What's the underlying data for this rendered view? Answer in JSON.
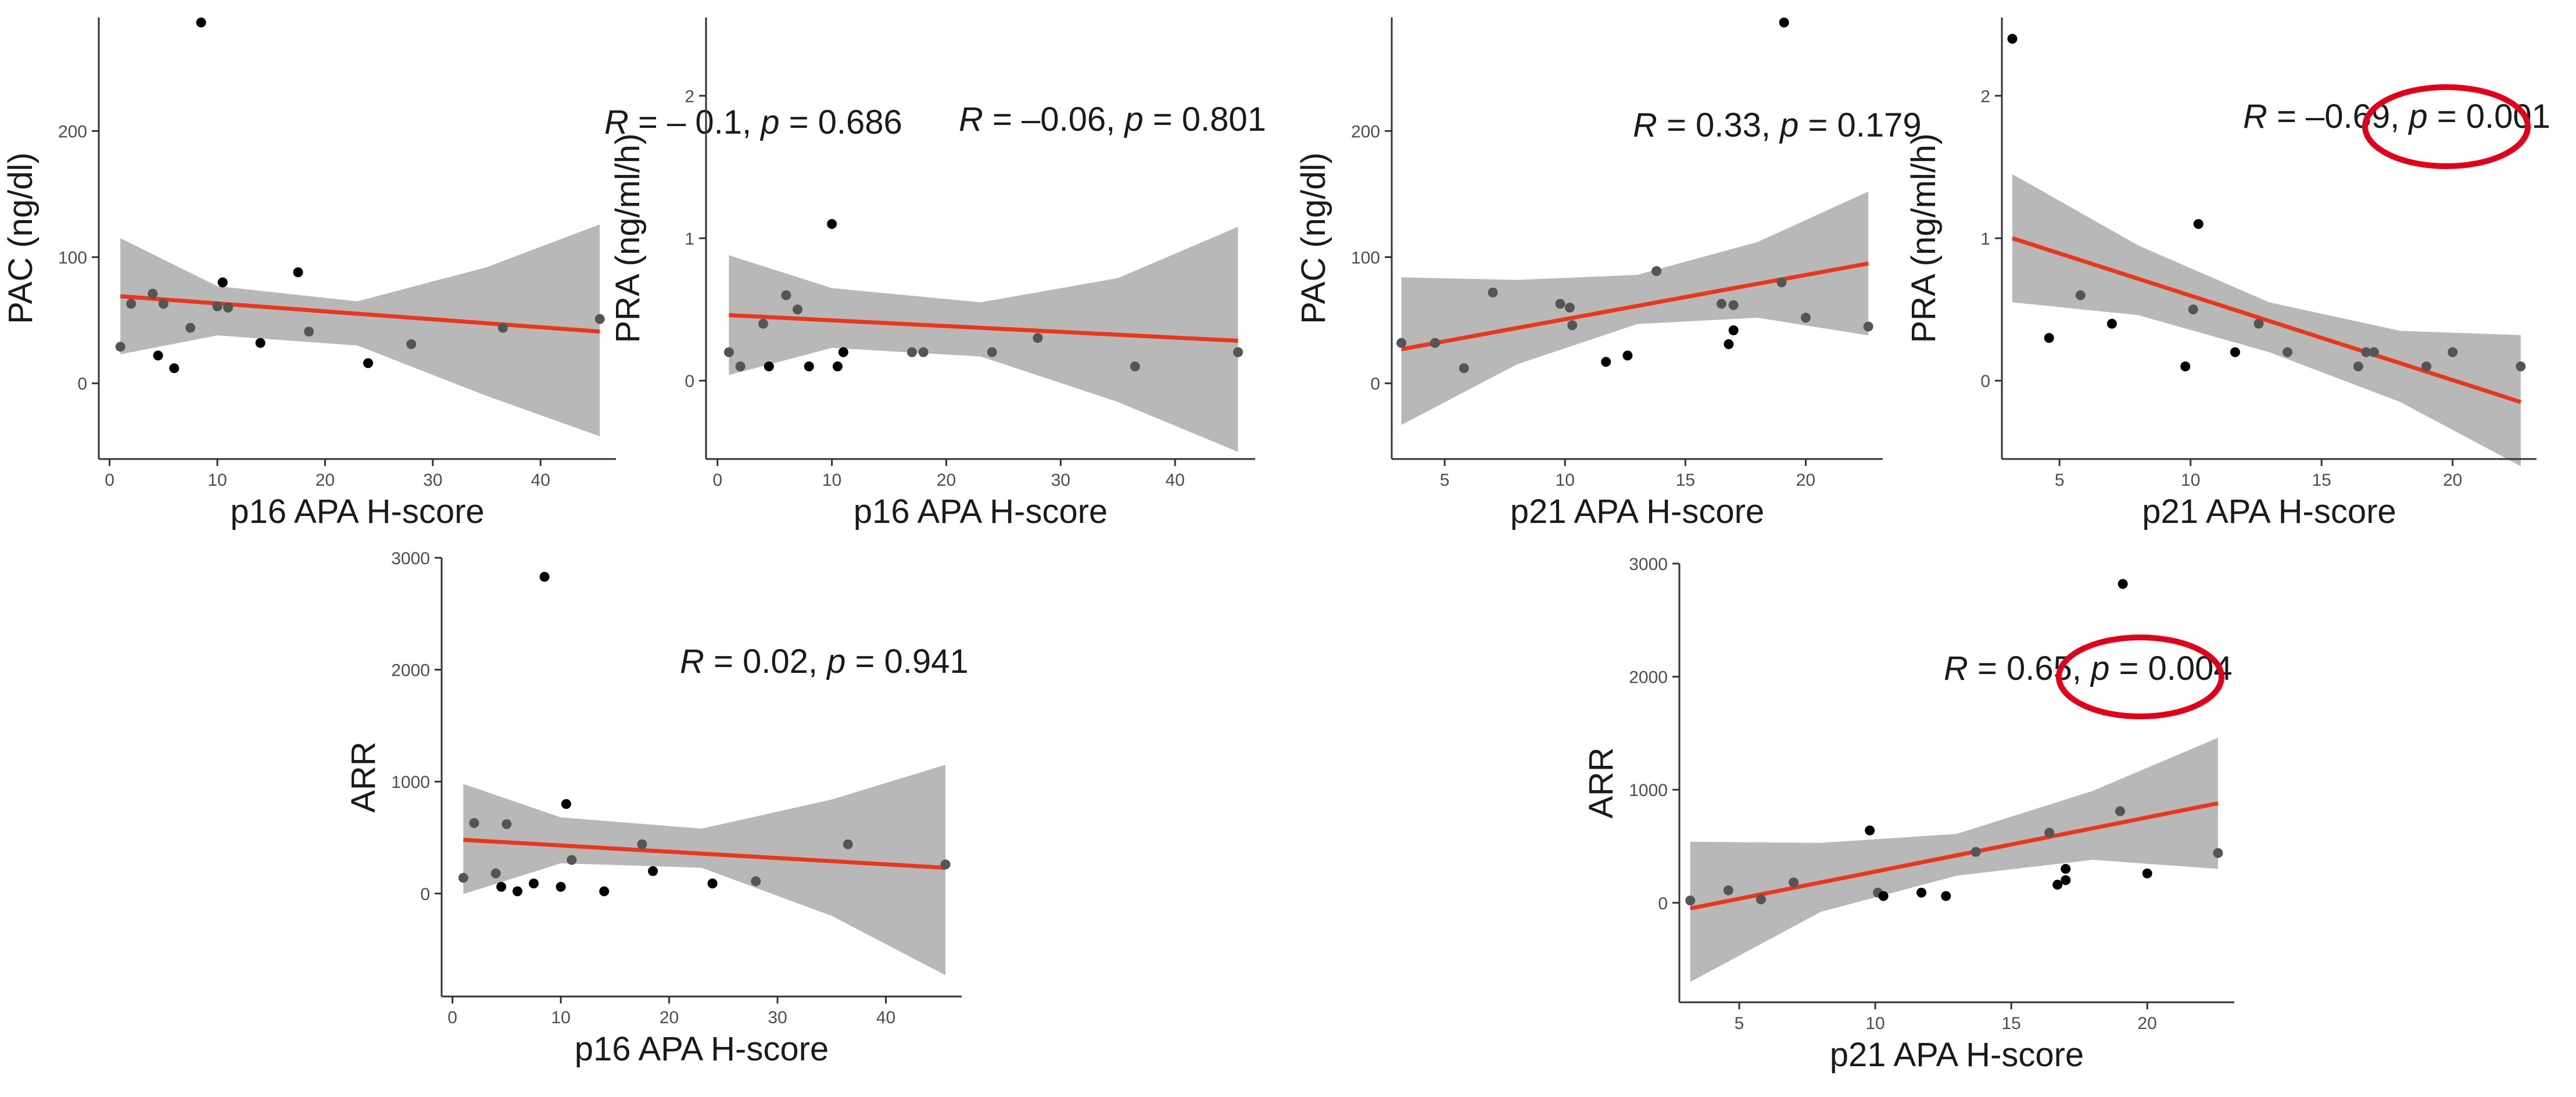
{
  "colors": {
    "fit_line": "#e8371c",
    "band": "#b4b4b4",
    "point": "#000000",
    "point_overlap": "#555555",
    "highlight": "#e0001a",
    "axis": "#333333"
  },
  "chart_data": [
    {
      "id": "p16_pac",
      "type": "scatter",
      "xlabel": "p16 APA H-score",
      "ylabel": "PAC (ng/dl)",
      "xlim": [
        -1,
        47
      ],
      "ylim": [
        -60,
        290
      ],
      "xticks": [
        0,
        10,
        20,
        30,
        40
      ],
      "yticks": [
        0,
        100,
        200
      ],
      "stats": {
        "r_label": "R",
        "r_text": " = – 0.1, ",
        "p_label": "p",
        "p_text": " = 0.686",
        "highlighted": false
      },
      "points": [
        [
          1,
          29
        ],
        [
          2,
          63
        ],
        [
          4,
          71
        ],
        [
          4.5,
          22
        ],
        [
          5,
          63
        ],
        [
          6,
          12
        ],
        [
          7.5,
          44
        ],
        [
          8.5,
          286
        ],
        [
          10,
          61
        ],
        [
          10.5,
          80
        ],
        [
          11,
          60
        ],
        [
          14,
          32
        ],
        [
          17.5,
          88
        ],
        [
          18.5,
          41
        ],
        [
          24,
          16
        ],
        [
          28,
          31
        ],
        [
          36.5,
          44
        ],
        [
          45.5,
          51
        ]
      ],
      "fit": {
        "x": [
          1,
          45.5
        ],
        "y": [
          69,
          41
        ]
      },
      "band": {
        "x": [
          1,
          10,
          23,
          35,
          45.5
        ],
        "lower": [
          23,
          38,
          30,
          -10,
          -42
        ],
        "upper": [
          115,
          77,
          65,
          92,
          126
        ]
      }
    },
    {
      "id": "p16_pra",
      "type": "scatter",
      "xlabel": "p16 APA H-score",
      "ylabel": "PRA (ng/ml/h)",
      "xlim": [
        -1,
        47
      ],
      "ylim": [
        -0.55,
        2.55
      ],
      "xticks": [
        0,
        10,
        20,
        30,
        40
      ],
      "yticks": [
        0,
        1,
        2
      ],
      "stats": {
        "r_label": "R",
        "r_text": " = –0.06, ",
        "p_label": "p",
        "p_text": " = 0.801",
        "highlighted": false
      },
      "points": [
        [
          1,
          0.2
        ],
        [
          2,
          0.1
        ],
        [
          4,
          0.4
        ],
        [
          4.5,
          0.1
        ],
        [
          6,
          0.6
        ],
        [
          7,
          0.5
        ],
        [
          8,
          0.1
        ],
        [
          10,
          1.1
        ],
        [
          10.5,
          0.1
        ],
        [
          11,
          0.2
        ],
        [
          17,
          0.2
        ],
        [
          18,
          0.2
        ],
        [
          24,
          0.2
        ],
        [
          28,
          0.3
        ],
        [
          36.5,
          0.1
        ],
        [
          45.5,
          0.2
        ]
      ],
      "fit": {
        "x": [
          1,
          45.5
        ],
        "y": [
          0.46,
          0.28
        ]
      },
      "band": {
        "x": [
          1,
          10,
          23,
          35,
          45.5
        ],
        "lower": [
          0.04,
          0.23,
          0.17,
          -0.15,
          -0.5
        ],
        "upper": [
          0.88,
          0.65,
          0.55,
          0.72,
          1.08
        ]
      }
    },
    {
      "id": "p21_pac",
      "type": "scatter",
      "xlabel": "p21 APA H-score",
      "ylabel": "PAC (ng/dl)",
      "xlim": [
        2.8,
        23.2
      ],
      "ylim": [
        -60,
        290
      ],
      "xticks": [
        5,
        10,
        15,
        20
      ],
      "yticks": [
        0,
        100,
        200
      ],
      "stats": {
        "r_label": "R",
        "r_text": " = 0.33, ",
        "p_label": "p",
        "p_text": " = 0.179",
        "highlighted": false
      },
      "points": [
        [
          3.2,
          32
        ],
        [
          4.6,
          32
        ],
        [
          5.8,
          12
        ],
        [
          7,
          72
        ],
        [
          9.8,
          63
        ],
        [
          10.2,
          60
        ],
        [
          10.3,
          46
        ],
        [
          11.7,
          17
        ],
        [
          12.6,
          22
        ],
        [
          13.8,
          89
        ],
        [
          16.5,
          63
        ],
        [
          16.8,
          31
        ],
        [
          17,
          62
        ],
        [
          17,
          42
        ],
        [
          19,
          80
        ],
        [
          20,
          52
        ],
        [
          19.1,
          286
        ],
        [
          22.6,
          45
        ]
      ],
      "fit": {
        "x": [
          3.2,
          22.6
        ],
        "y": [
          27,
          95
        ]
      },
      "band": {
        "x": [
          3.2,
          8,
          13,
          18,
          22.6
        ],
        "lower": [
          -33,
          15,
          47,
          52,
          38
        ],
        "upper": [
          84,
          82,
          86,
          112,
          152
        ]
      }
    },
    {
      "id": "p21_pra",
      "type": "scatter",
      "xlabel": "p21 APA H-score",
      "ylabel": "PRA (ng/ml/h)",
      "xlim": [
        2.8,
        23.2
      ],
      "ylim": [
        -0.55,
        2.55
      ],
      "xticks": [
        5,
        10,
        15,
        20
      ],
      "yticks": [
        0,
        1,
        2
      ],
      "stats": {
        "r_label": "R",
        "r_text": " = –0.69, ",
        "p_label": "p",
        "p_text": " = 0.001",
        "highlighted": true
      },
      "points": [
        [
          3.2,
          2.4
        ],
        [
          4.6,
          0.3
        ],
        [
          5.8,
          0.6
        ],
        [
          7,
          0.4
        ],
        [
          9.8,
          0.1
        ],
        [
          10.1,
          0.5
        ],
        [
          10.3,
          1.1
        ],
        [
          11.7,
          0.2
        ],
        [
          12.6,
          0.4
        ],
        [
          13.7,
          0.2
        ],
        [
          16.4,
          0.1
        ],
        [
          16.7,
          0.2
        ],
        [
          17,
          0.2
        ],
        [
          19,
          0.1
        ],
        [
          20,
          0.2
        ],
        [
          22.6,
          0.1
        ]
      ],
      "fit": {
        "x": [
          3.2,
          22.6
        ],
        "y": [
          1.0,
          -0.15
        ]
      },
      "band": {
        "x": [
          3.2,
          8,
          13,
          18,
          22.6
        ],
        "lower": [
          0.55,
          0.46,
          0.2,
          -0.15,
          -0.6
        ],
        "upper": [
          1.45,
          0.95,
          0.55,
          0.35,
          0.32
        ]
      }
    },
    {
      "id": "p16_arr",
      "type": "scatter",
      "xlabel": "p16 APA H-score",
      "ylabel": "ARR",
      "xlim": [
        -1,
        47
      ],
      "ylim": [
        -920,
        3000
      ],
      "xticks": [
        0,
        10,
        20,
        30,
        40
      ],
      "yticks": [
        0,
        1000,
        2000,
        3000
      ],
      "stats": {
        "r_label": "R",
        "r_text": " = 0.02, ",
        "p_label": "p",
        "p_text": " = 0.941",
        "highlighted": false
      },
      "points": [
        [
          1,
          140
        ],
        [
          2,
          630
        ],
        [
          4,
          180
        ],
        [
          4.5,
          60
        ],
        [
          5,
          620
        ],
        [
          6,
          20
        ],
        [
          7.5,
          90
        ],
        [
          8.5,
          2830
        ],
        [
          10,
          60
        ],
        [
          10.5,
          800
        ],
        [
          11,
          300
        ],
        [
          14,
          20
        ],
        [
          17.5,
          440
        ],
        [
          18.5,
          200
        ],
        [
          24,
          90
        ],
        [
          28,
          110
        ],
        [
          36.5,
          440
        ],
        [
          45.5,
          260
        ]
      ],
      "fit": {
        "x": [
          1,
          45.5
        ],
        "y": [
          480,
          230
        ]
      },
      "band": {
        "x": [
          1,
          10,
          23,
          35,
          45.5
        ],
        "lower": [
          -5,
          270,
          230,
          -200,
          -730
        ],
        "upper": [
          980,
          680,
          580,
          840,
          1150
        ]
      }
    },
    {
      "id": "p21_arr",
      "type": "scatter",
      "xlabel": "p21 APA H-score",
      "ylabel": "ARR",
      "xlim": [
        2.8,
        23.2
      ],
      "ylim": [
        -880,
        3000
      ],
      "xticks": [
        5,
        10,
        15,
        20
      ],
      "yticks": [
        0,
        1000,
        2000,
        3000
      ],
      "stats": {
        "r_label": "R",
        "r_text": " = 0.65, ",
        "p_label": "p",
        "p_text": " = 0.004",
        "highlighted": true
      },
      "points": [
        [
          3.2,
          20
        ],
        [
          4.6,
          110
        ],
        [
          5.8,
          30
        ],
        [
          7,
          180
        ],
        [
          9.8,
          640
        ],
        [
          10.1,
          90
        ],
        [
          10.3,
          60
        ],
        [
          11.7,
          90
        ],
        [
          12.6,
          60
        ],
        [
          13.7,
          450
        ],
        [
          16.4,
          620
        ],
        [
          16.7,
          160
        ],
        [
          17,
          200
        ],
        [
          17,
          300
        ],
        [
          19,
          810
        ],
        [
          19.1,
          2820
        ],
        [
          20,
          260
        ],
        [
          22.6,
          440
        ]
      ],
      "fit": {
        "x": [
          3.2,
          22.6
        ],
        "y": [
          -50,
          880
        ]
      },
      "band": {
        "x": [
          3.2,
          8,
          13,
          18,
          22.6
        ],
        "lower": [
          -700,
          -80,
          240,
          380,
          300
        ],
        "upper": [
          540,
          530,
          610,
          990,
          1460
        ]
      }
    }
  ]
}
